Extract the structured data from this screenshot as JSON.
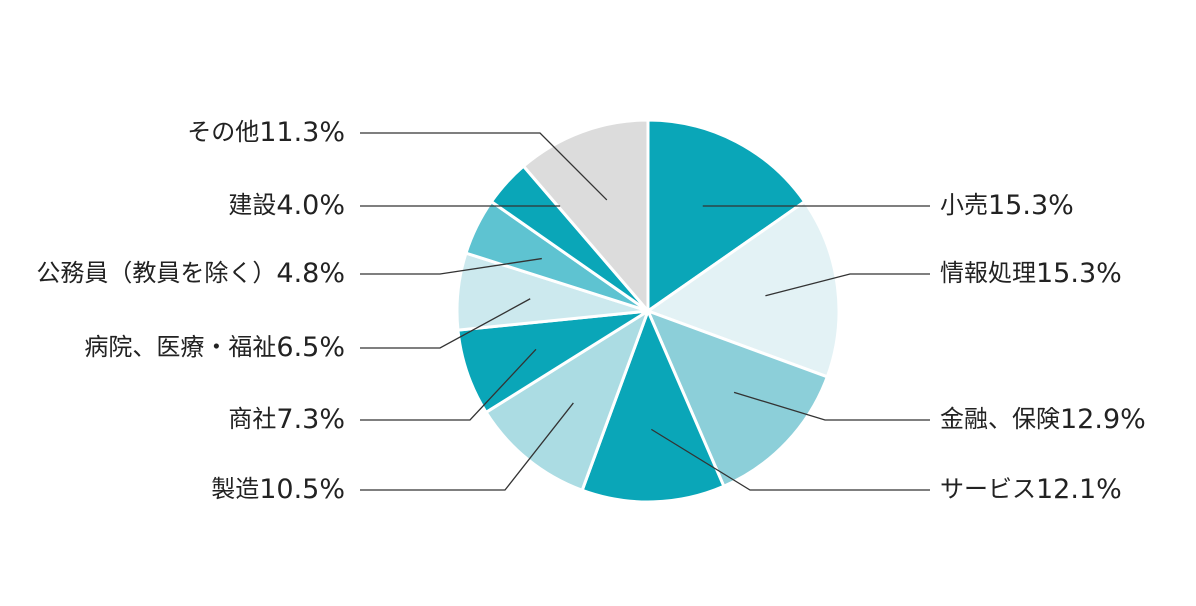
{
  "chart_data": {
    "type": "pie",
    "categories": [
      "小売",
      "情報処理",
      "金融、保険",
      "サービス",
      "製造",
      "商社",
      "病院、医療・福祉",
      "公務員（教員を除く）",
      "建設",
      "その他"
    ],
    "values": [
      15.3,
      15.3,
      12.9,
      12.1,
      10.5,
      7.3,
      6.5,
      4.8,
      4.0,
      11.3
    ],
    "value_labels": [
      "15.3%",
      "15.3%",
      "12.9%",
      "12.1%",
      "10.5%",
      "7.3%",
      "6.5%",
      "4.8%",
      "4.0%",
      "11.3%"
    ],
    "colors": [
      "#0aa6b8",
      "#e3f2f5",
      "#8ccfd9",
      "#0aa6b8",
      "#abdce3",
      "#0aa6b8",
      "#cce9ee",
      "#5ec3d1",
      "#0aa6b8",
      "#dcdcdc"
    ]
  }
}
